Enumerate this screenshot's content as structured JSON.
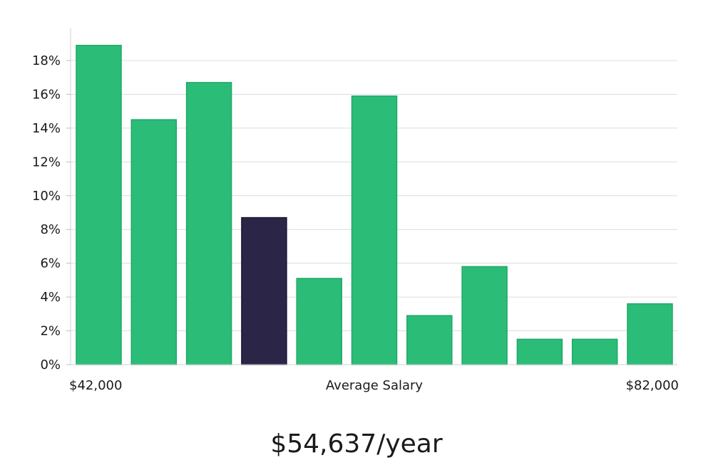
{
  "chart_data": {
    "type": "bar",
    "title": "",
    "xlabel": "Average Salary",
    "ylabel": "",
    "x_range_labels": {
      "min": "$42,000",
      "max": "$82,000"
    },
    "ylim": [
      0,
      19
    ],
    "yticks": [
      0,
      2,
      4,
      6,
      8,
      10,
      12,
      14,
      16,
      18
    ],
    "ytick_labels": [
      "0%",
      "2%",
      "4%",
      "6%",
      "8%",
      "10%",
      "12%",
      "14%",
      "16%",
      "18%"
    ],
    "values": [
      18.9,
      14.5,
      16.7,
      8.7,
      5.1,
      15.9,
      2.9,
      5.8,
      1.5,
      1.5,
      3.6
    ],
    "highlight_index": 3,
    "grid": true,
    "colors": {
      "bar": "#2bbd77",
      "bar_edge": "#1fa866",
      "highlight": "#2b2547",
      "grid": "#dcdcdc",
      "axis": "#cccccc"
    }
  },
  "summary": {
    "salary": "$54,637/year"
  }
}
